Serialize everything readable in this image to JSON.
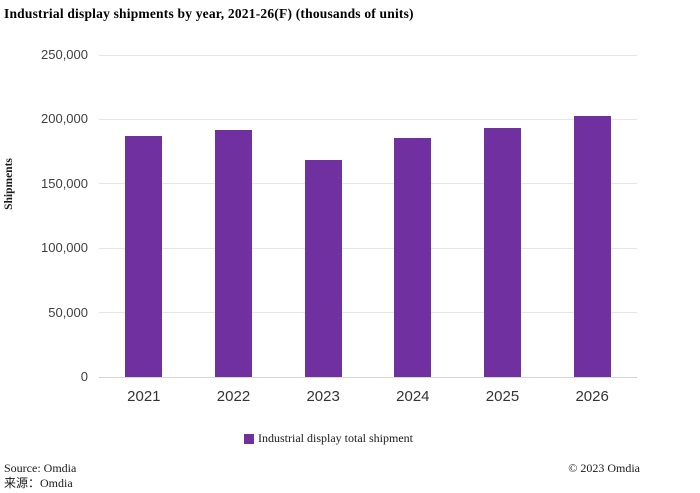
{
  "title": "Industrial display shipments by year, 2021-26(F) (thousands of units)",
  "chart_data": {
    "type": "bar",
    "title": "Industrial display shipments by year, 2021-26(F) (thousands of units)",
    "categories": [
      "2021",
      "2022",
      "2023",
      "2024",
      "2025",
      "2026"
    ],
    "series": [
      {
        "name": "Industrial display total shipment",
        "values": [
          187000,
          191500,
          168500,
          185500,
          193000,
          203000
        ]
      }
    ],
    "xlabel": "",
    "ylabel": "Shipments",
    "ylim": [
      0,
      250000
    ],
    "ytick_values": [
      0,
      50000,
      100000,
      150000,
      200000,
      250000
    ],
    "ytick_labels": [
      "0",
      "50,000",
      "100,000",
      "150,000",
      "200,000",
      "250,000"
    ],
    "grid": true,
    "legend_position": "bottom"
  },
  "legend": {
    "label": "Industrial display total shipment",
    "marker_color": "#7030A0"
  },
  "footer": {
    "source_en": "Source: Omdia",
    "source_zh": "来源：Omdia",
    "copyright": "© 2023 Omdia"
  },
  "colors": {
    "bar": "#7030A0",
    "gridline": "#e6e6e6",
    "axis_line": "#d6d6d6",
    "tick_text": "#404040",
    "title_text": "#000000"
  }
}
